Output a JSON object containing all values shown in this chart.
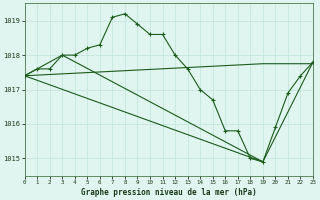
{
  "title": "Graphe pression niveau de la mer (hPa)",
  "bg_color": "#e0f5f0",
  "grid_color": "#c8e8e0",
  "line_color": "#1a5c1a",
  "xmin": 0,
  "xmax": 23,
  "ymin": 1014.5,
  "ymax": 1019.5,
  "yticks": [
    1015,
    1016,
    1017,
    1018,
    1019
  ],
  "xticks": [
    0,
    1,
    2,
    3,
    4,
    5,
    6,
    7,
    8,
    9,
    10,
    11,
    12,
    13,
    14,
    15,
    16,
    17,
    18,
    19,
    20,
    21,
    22,
    23
  ],
  "lines": [
    {
      "x": [
        0,
        1,
        2,
        3,
        4,
        5,
        6,
        7,
        8,
        9,
        10,
        11,
        12,
        13,
        14,
        15,
        16,
        17,
        18,
        19,
        20,
        21,
        22,
        23
      ],
      "y": [
        1017.4,
        1017.6,
        1017.6,
        1018.0,
        1018.0,
        1018.2,
        1018.3,
        1019.1,
        1019.2,
        1018.9,
        1018.6,
        1018.6,
        1018.0,
        1017.6,
        1017.0,
        1016.7,
        1015.8,
        1015.8,
        1015.0,
        1014.9,
        1015.9,
        1016.9,
        1017.4,
        1017.8
      ],
      "marker": true
    },
    {
      "x": [
        0,
        19,
        23
      ],
      "y": [
        1017.4,
        1017.75,
        1017.75
      ],
      "marker": false
    },
    {
      "x": [
        0,
        3,
        19,
        23
      ],
      "y": [
        1017.4,
        1018.0,
        1014.9,
        1017.8
      ],
      "marker": false
    },
    {
      "x": [
        0,
        19
      ],
      "y": [
        1017.4,
        1014.9
      ],
      "marker": false
    }
  ]
}
